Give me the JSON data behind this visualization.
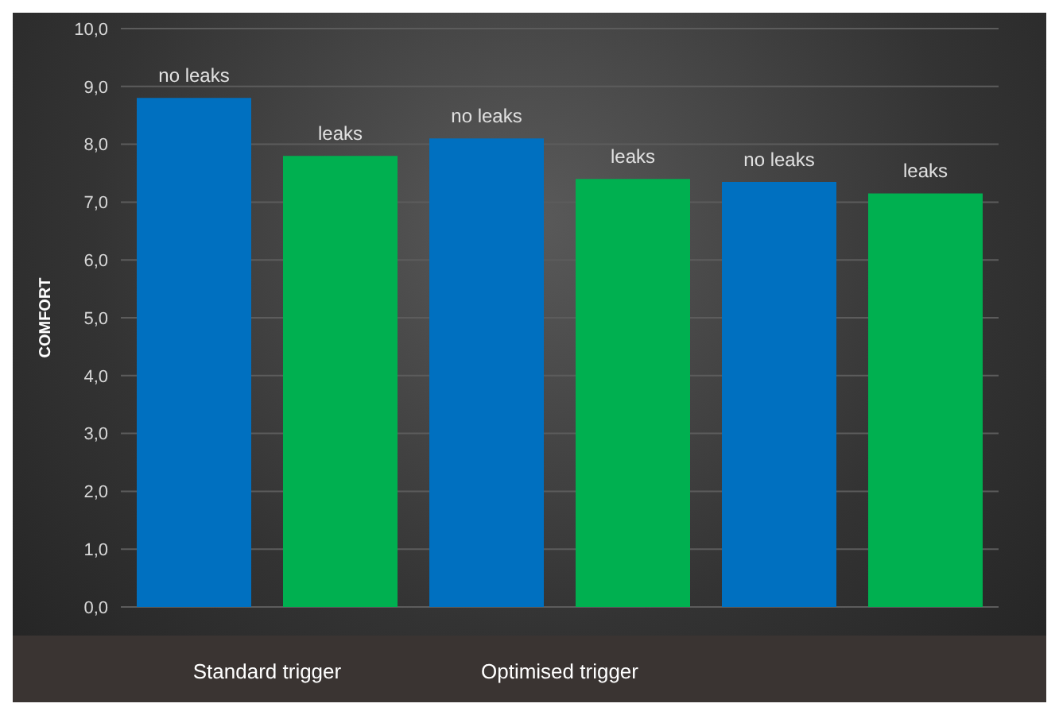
{
  "chart_data": {
    "type": "bar",
    "ylabel": "COMFORT",
    "categories": [
      "Standard trigger",
      "Optimised trigger",
      null
    ],
    "series": [
      {
        "name": "no leaks",
        "color": "#0070c0",
        "values": [
          8.8,
          8.1,
          7.35
        ]
      },
      {
        "name": "leaks",
        "color": "#00b050",
        "values": [
          7.8,
          7.4,
          7.15
        ]
      }
    ],
    "ylim": [
      0,
      10
    ],
    "yticks": [
      {
        "value": 0,
        "label": "0,0"
      },
      {
        "value": 1,
        "label": "1,0"
      },
      {
        "value": 2,
        "label": "2,0"
      },
      {
        "value": 3,
        "label": "3,0"
      },
      {
        "value": 4,
        "label": "4,0"
      },
      {
        "value": 5,
        "label": "5,0"
      },
      {
        "value": 6,
        "label": "6,0"
      },
      {
        "value": 7,
        "label": "7,0"
      },
      {
        "value": 8,
        "label": "8,0"
      },
      {
        "value": 9,
        "label": "9,0"
      },
      {
        "value": 10,
        "label": "10,0"
      }
    ],
    "grid": "y",
    "legend": false
  }
}
